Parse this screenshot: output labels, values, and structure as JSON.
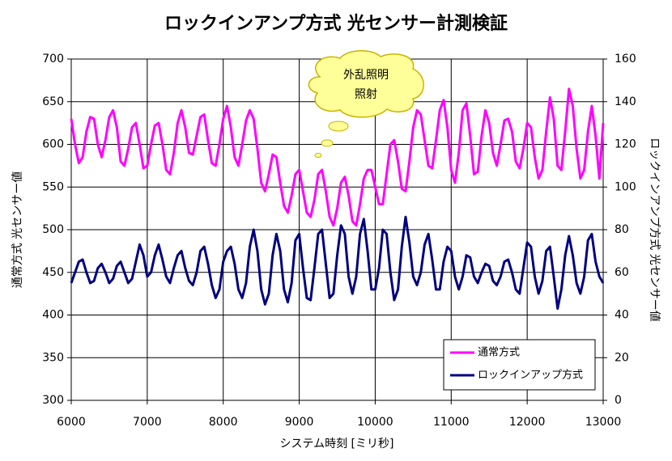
{
  "chart_data": {
    "type": "line",
    "title": "ロックインアンプ方式 光センサー計測検証",
    "xlabel": "システム時刻 [ミリ秒]",
    "ylabel": "通常方式 光センサー値",
    "y2label": "ロックインアンプ方式 光センサー値",
    "annotation": [
      "外乱照明",
      "照射"
    ],
    "legend": "lower right",
    "grid": true,
    "xlim": [
      6000,
      13000
    ],
    "xticks": [
      6000,
      7000,
      8000,
      9000,
      10000,
      11000,
      12000,
      13000
    ],
    "ylim": [
      300,
      700
    ],
    "yticks": [
      300,
      350,
      400,
      450,
      500,
      550,
      600,
      650,
      700
    ],
    "y2lim": [
      0,
      160
    ],
    "y2ticks": [
      0,
      20,
      40,
      60,
      80,
      100,
      120,
      140,
      160
    ],
    "x": [
      6000,
      6050,
      6100,
      6150,
      6200,
      6250,
      6300,
      6350,
      6400,
      6450,
      6500,
      6550,
      6600,
      6650,
      6700,
      6750,
      6800,
      6850,
      6900,
      6950,
      7000,
      7050,
      7100,
      7150,
      7200,
      7250,
      7300,
      7350,
      7400,
      7450,
      7500,
      7550,
      7600,
      7650,
      7700,
      7750,
      7800,
      7850,
      7900,
      7950,
      8000,
      8050,
      8100,
      8150,
      8200,
      8250,
      8300,
      8350,
      8400,
      8450,
      8500,
      8550,
      8600,
      8650,
      8700,
      8750,
      8800,
      8850,
      8900,
      8950,
      9000,
      9050,
      9100,
      9150,
      9200,
      9250,
      9300,
      9350,
      9400,
      9450,
      9500,
      9550,
      9600,
      9650,
      9700,
      9750,
      9800,
      9850,
      9900,
      9950,
      10000,
      10050,
      10100,
      10150,
      10200,
      10250,
      10300,
      10350,
      10400,
      10450,
      10500,
      10550,
      10600,
      10650,
      10700,
      10750,
      10800,
      10850,
      10900,
      10950,
      11000,
      11050,
      11100,
      11150,
      11200,
      11250,
      11300,
      11350,
      11400,
      11450,
      11500,
      11550,
      11600,
      11650,
      11700,
      11750,
      11800,
      11850,
      11900,
      11950,
      12000,
      12050,
      12100,
      12150,
      12200,
      12250,
      12300,
      12350,
      12400,
      12450,
      12500,
      12550,
      12600,
      12650,
      12700,
      12750,
      12800,
      12850,
      12900,
      12950,
      13000
    ],
    "series": [
      {
        "name": "通常方式",
        "color": "#ff00ff",
        "axis": "y",
        "values": [
          630,
          600,
          578,
          585,
          615,
          632,
          630,
          600,
          585,
          605,
          632,
          640,
          620,
          580,
          575,
          595,
          620,
          625,
          600,
          572,
          575,
          600,
          622,
          625,
          600,
          570,
          565,
          590,
          625,
          640,
          620,
          590,
          588,
          610,
          632,
          635,
          605,
          578,
          575,
          600,
          630,
          645,
          620,
          585,
          575,
          600,
          628,
          640,
          630,
          595,
          555,
          545,
          565,
          588,
          585,
          555,
          528,
          520,
          540,
          565,
          570,
          545,
          520,
          515,
          535,
          565,
          570,
          545,
          515,
          505,
          525,
          555,
          562,
          540,
          510,
          505,
          530,
          560,
          570,
          570,
          550,
          530,
          530,
          565,
          600,
          605,
          580,
          548,
          545,
          580,
          620,
          640,
          635,
          605,
          575,
          572,
          605,
          640,
          652,
          620,
          570,
          555,
          590,
          640,
          648,
          610,
          565,
          568,
          610,
          640,
          625,
          590,
          575,
          600,
          628,
          630,
          615,
          580,
          572,
          595,
          625,
          620,
          585,
          560,
          570,
          615,
          655,
          630,
          575,
          570,
          615,
          665,
          645,
          595,
          560,
          570,
          615,
          645,
          610,
          560,
          625
        ]
      },
      {
        "name": "ロックインアップ方式",
        "color": "#000080",
        "axis": "y2",
        "values": [
          55,
          60,
          65,
          66,
          60,
          55,
          56,
          62,
          64,
          60,
          55,
          57,
          63,
          65,
          60,
          55,
          57,
          65,
          73,
          68,
          58,
          60,
          68,
          73,
          66,
          58,
          55,
          62,
          68,
          70,
          62,
          56,
          54,
          60,
          70,
          72,
          64,
          54,
          48,
          52,
          65,
          70,
          72,
          64,
          52,
          48,
          55,
          72,
          80,
          70,
          52,
          45,
          50,
          68,
          78,
          70,
          52,
          46,
          55,
          75,
          78,
          62,
          48,
          47,
          62,
          78,
          80,
          64,
          48,
          50,
          68,
          82,
          78,
          58,
          50,
          58,
          78,
          85,
          70,
          52,
          52,
          62,
          80,
          78,
          60,
          47,
          52,
          72,
          86,
          74,
          58,
          54,
          60,
          73,
          78,
          66,
          52,
          52,
          65,
          72,
          70,
          58,
          52,
          58,
          68,
          67,
          58,
          55,
          60,
          64,
          63,
          56,
          54,
          58,
          65,
          66,
          60,
          52,
          50,
          62,
          74,
          72,
          58,
          50,
          56,
          70,
          72,
          58,
          43,
          52,
          68,
          77,
          68,
          55,
          50,
          58,
          75,
          78,
          65,
          58,
          55
        ]
      }
    ]
  }
}
